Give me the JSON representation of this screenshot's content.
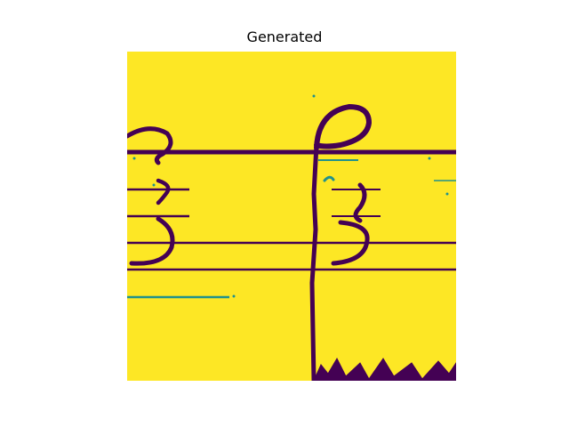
{
  "figure": {
    "title": "Generated"
  },
  "image": {
    "description_name": "generated-image",
    "colormap": {
      "background": "#fde725",
      "ink": "#440154",
      "edge": "#21918c"
    }
  }
}
